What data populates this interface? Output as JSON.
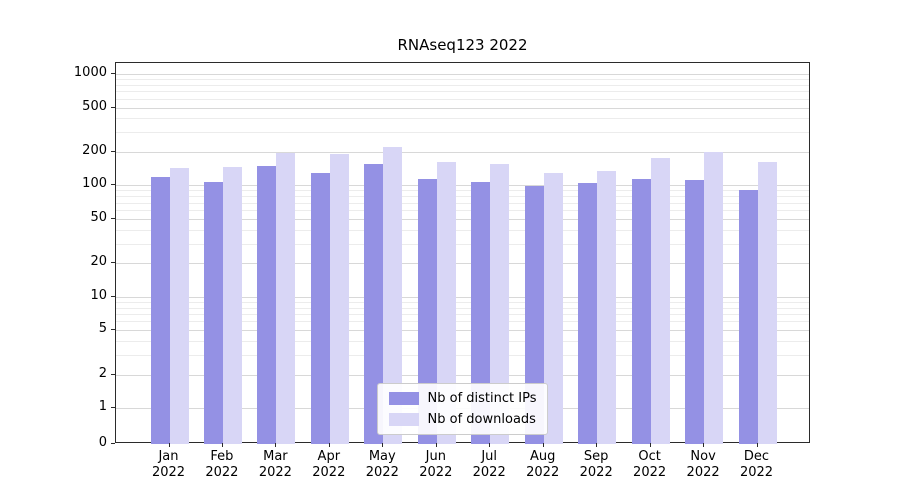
{
  "chart_data": {
    "type": "bar",
    "title": "RNAseq123 2022",
    "categories": [
      "Jan",
      "Feb",
      "Mar",
      "Apr",
      "May",
      "Jun",
      "Jul",
      "Aug",
      "Sep",
      "Oct",
      "Nov",
      "Dec"
    ],
    "category_year": "2022",
    "series": [
      {
        "name": "Nb of distinct IPs",
        "color": "#9491e4",
        "values": [
          120,
          108,
          150,
          130,
          155,
          115,
          108,
          98,
          104,
          114,
          111,
          90
        ]
      },
      {
        "name": "Nb of downloads",
        "color": "#d8d6f6",
        "values": [
          143,
          145,
          195,
          190,
          220,
          162,
          155,
          128,
          134,
          175,
          200,
          163
        ]
      }
    ],
    "yscale": "symlog",
    "yticks": [
      0,
      1,
      2,
      5,
      10,
      20,
      50,
      100,
      200,
      500,
      1000
    ],
    "minor_gridlines": [
      3,
      4,
      6,
      7,
      8,
      9,
      30,
      40,
      60,
      70,
      80,
      90,
      300,
      400,
      600,
      700,
      800,
      900
    ],
    "ylim": [
      0,
      1250
    ],
    "grid": true,
    "legend_position": "lower center",
    "xlabel": "",
    "ylabel": ""
  }
}
